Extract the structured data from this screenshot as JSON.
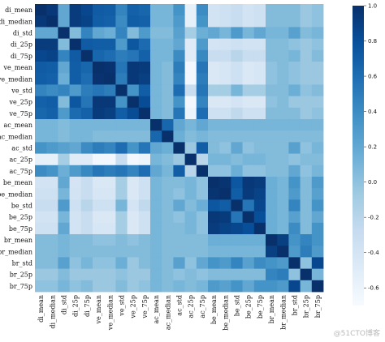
{
  "watermark": "@51CTO博客",
  "chart_data": {
    "type": "heatmap",
    "title": "",
    "xlabel": "",
    "ylabel": "",
    "labels": [
      "di_mean",
      "di_median",
      "di_std",
      "di_25p",
      "di_75p",
      "ve_mean",
      "ve_median",
      "ve_std",
      "ve_25p",
      "ve_75p",
      "ac_mean",
      "ac_median",
      "ac_std",
      "ac_25p",
      "ac_75p",
      "be_mean",
      "be_median",
      "be_std",
      "be_25p",
      "be_75p",
      "br_mean",
      "br_median",
      "br_std",
      "br_25p",
      "br_75p"
    ],
    "matrix": [
      [
        1.0,
        0.95,
        0.2,
        0.92,
        0.85,
        0.72,
        0.7,
        0.45,
        0.68,
        0.65,
        0.1,
        0.1,
        0.35,
        -0.55,
        0.4,
        -0.38,
        -0.35,
        -0.3,
        -0.38,
        -0.35,
        0.05,
        0.05,
        0.05,
        -0.05,
        0.0
      ],
      [
        0.95,
        1.0,
        0.2,
        0.92,
        0.88,
        0.7,
        0.68,
        0.4,
        0.7,
        0.68,
        0.1,
        0.1,
        0.3,
        -0.55,
        0.35,
        -0.38,
        -0.35,
        -0.3,
        -0.38,
        -0.35,
        0.05,
        0.05,
        0.05,
        -0.05,
        0.0
      ],
      [
        0.2,
        0.2,
        1.0,
        0.05,
        0.45,
        0.2,
        0.15,
        0.45,
        0.05,
        0.3,
        0.05,
        0.05,
        0.25,
        -0.1,
        0.15,
        0.2,
        0.1,
        0.3,
        0.1,
        0.2,
        0.1,
        0.1,
        0.25,
        0.05,
        0.1
      ],
      [
        0.92,
        0.92,
        0.05,
        1.0,
        0.72,
        0.7,
        0.7,
        0.3,
        0.75,
        0.62,
        0.1,
        0.1,
        0.2,
        -0.5,
        0.3,
        -0.4,
        -0.38,
        -0.35,
        -0.38,
        -0.38,
        0.05,
        0.05,
        0.0,
        -0.05,
        0.0
      ],
      [
        0.85,
        0.88,
        0.45,
        0.72,
        1.0,
        0.65,
        0.6,
        0.5,
        0.55,
        0.68,
        0.1,
        0.1,
        0.4,
        -0.5,
        0.42,
        -0.3,
        -0.3,
        -0.2,
        -0.3,
        -0.3,
        0.05,
        0.05,
        0.1,
        -0.05,
        0.05
      ],
      [
        0.72,
        0.7,
        0.2,
        0.7,
        0.65,
        1.0,
        0.98,
        0.55,
        0.95,
        0.93,
        0.1,
        0.05,
        0.5,
        -0.65,
        0.55,
        -0.45,
        -0.42,
        -0.35,
        -0.45,
        -0.42,
        0.0,
        0.05,
        0.0,
        -0.05,
        -0.05
      ],
      [
        0.7,
        0.68,
        0.15,
        0.7,
        0.6,
        0.98,
        1.0,
        0.5,
        0.95,
        0.9,
        0.1,
        0.05,
        0.45,
        -0.65,
        0.5,
        -0.45,
        -0.42,
        -0.35,
        -0.45,
        -0.42,
        0.0,
        0.05,
        0.0,
        -0.05,
        -0.05
      ],
      [
        0.45,
        0.4,
        0.45,
        0.3,
        0.5,
        0.55,
        0.5,
        1.0,
        0.35,
        0.7,
        0.1,
        0.05,
        0.6,
        -0.3,
        0.55,
        -0.1,
        -0.1,
        0.1,
        -0.1,
        -0.1,
        0.05,
        0.05,
        0.15,
        0.0,
        0.05
      ],
      [
        0.68,
        0.7,
        0.05,
        0.75,
        0.55,
        0.95,
        0.95,
        0.35,
        1.0,
        0.82,
        0.1,
        0.05,
        0.35,
        -0.65,
        0.45,
        -0.45,
        -0.45,
        -0.4,
        -0.45,
        -0.45,
        0.0,
        0.05,
        -0.05,
        -0.05,
        -0.05
      ],
      [
        0.65,
        0.68,
        0.3,
        0.62,
        0.68,
        0.93,
        0.9,
        0.7,
        0.82,
        1.0,
        0.1,
        0.05,
        0.55,
        -0.6,
        0.6,
        -0.35,
        -0.35,
        -0.25,
        -0.35,
        -0.35,
        0.05,
        0.05,
        0.05,
        -0.05,
        0.0
      ],
      [
        0.1,
        0.1,
        0.05,
        0.1,
        0.1,
        0.1,
        0.1,
        0.1,
        0.1,
        0.1,
        1.0,
        0.65,
        0.2,
        0.1,
        0.2,
        0.1,
        0.1,
        0.1,
        0.1,
        0.1,
        0.1,
        0.1,
        0.1,
        0.1,
        0.1
      ],
      [
        0.1,
        0.1,
        0.05,
        0.1,
        0.1,
        0.05,
        0.05,
        0.05,
        0.05,
        0.05,
        0.65,
        1.0,
        0.15,
        0.05,
        0.1,
        0.05,
        0.05,
        0.05,
        0.05,
        0.05,
        0.05,
        0.05,
        0.05,
        0.05,
        0.05
      ],
      [
        0.35,
        0.3,
        0.25,
        0.2,
        0.4,
        0.5,
        0.45,
        0.6,
        0.35,
        0.55,
        0.2,
        0.15,
        1.0,
        -0.05,
        0.7,
        0.05,
        0.0,
        0.2,
        0.0,
        0.05,
        0.05,
        0.05,
        0.25,
        0.0,
        0.1
      ],
      [
        -0.55,
        -0.55,
        -0.1,
        -0.5,
        -0.5,
        -0.65,
        -0.65,
        -0.3,
        -0.65,
        -0.6,
        0.1,
        0.05,
        -0.05,
        1.0,
        -0.2,
        0.1,
        0.1,
        0.05,
        0.1,
        0.1,
        0.05,
        0.05,
        0.0,
        0.05,
        0.05
      ],
      [
        0.4,
        0.35,
        0.15,
        0.3,
        0.42,
        0.55,
        0.5,
        0.55,
        0.45,
        0.6,
        0.2,
        0.1,
        0.7,
        -0.2,
        1.0,
        0.0,
        0.0,
        0.15,
        0.0,
        0.0,
        0.05,
        0.05,
        0.2,
        0.0,
        0.1
      ],
      [
        -0.38,
        -0.38,
        0.2,
        -0.4,
        -0.3,
        -0.45,
        -0.45,
        -0.1,
        -0.45,
        -0.35,
        0.1,
        0.05,
        0.05,
        0.1,
        0.0,
        1.0,
        0.97,
        0.75,
        0.95,
        0.92,
        0.15,
        0.1,
        0.35,
        0.05,
        0.3
      ],
      [
        -0.35,
        -0.35,
        0.1,
        -0.38,
        -0.3,
        -0.42,
        -0.42,
        -0.1,
        -0.45,
        -0.35,
        0.1,
        0.05,
        0.0,
        0.1,
        0.0,
        0.97,
        1.0,
        0.7,
        0.93,
        0.88,
        0.15,
        0.1,
        0.3,
        0.05,
        0.25
      ],
      [
        -0.3,
        -0.3,
        0.3,
        -0.35,
        -0.2,
        -0.35,
        -0.35,
        0.1,
        -0.4,
        -0.25,
        0.1,
        0.05,
        0.2,
        0.05,
        0.15,
        0.75,
        0.7,
        1.0,
        0.55,
        0.85,
        0.15,
        0.1,
        0.45,
        0.05,
        0.35
      ],
      [
        -0.38,
        -0.38,
        0.1,
        -0.38,
        -0.3,
        -0.45,
        -0.45,
        -0.1,
        -0.45,
        -0.35,
        0.1,
        0.05,
        0.0,
        0.1,
        0.0,
        0.95,
        0.93,
        0.55,
        1.0,
        0.8,
        0.15,
        0.1,
        0.25,
        0.05,
        0.2
      ],
      [
        -0.35,
        -0.35,
        0.2,
        -0.38,
        -0.3,
        -0.42,
        -0.42,
        -0.1,
        -0.45,
        -0.35,
        0.1,
        0.05,
        0.05,
        0.1,
        0.0,
        0.92,
        0.88,
        0.85,
        0.8,
        1.0,
        0.15,
        0.1,
        0.4,
        0.05,
        0.35
      ],
      [
        0.05,
        0.05,
        0.1,
        0.05,
        0.05,
        0.0,
        0.0,
        0.05,
        0.0,
        0.05,
        0.1,
        0.05,
        0.05,
        0.05,
        0.05,
        0.15,
        0.15,
        0.15,
        0.15,
        0.15,
        1.0,
        0.9,
        0.35,
        0.45,
        0.35
      ],
      [
        0.05,
        0.05,
        0.1,
        0.05,
        0.05,
        0.05,
        0.05,
        0.05,
        0.05,
        0.05,
        0.1,
        0.05,
        0.05,
        0.05,
        0.05,
        0.1,
        0.1,
        0.1,
        0.1,
        0.1,
        0.9,
        1.0,
        0.3,
        0.5,
        0.3
      ],
      [
        0.05,
        0.05,
        0.25,
        0.0,
        0.1,
        0.0,
        0.0,
        0.15,
        -0.05,
        0.05,
        0.1,
        0.05,
        0.25,
        0.0,
        0.2,
        0.35,
        0.3,
        0.45,
        0.25,
        0.4,
        0.35,
        0.3,
        1.0,
        0.0,
        0.85
      ],
      [
        -0.05,
        -0.05,
        0.05,
        -0.05,
        -0.05,
        -0.05,
        -0.05,
        0.0,
        -0.05,
        -0.05,
        0.1,
        0.05,
        0.0,
        0.05,
        0.0,
        0.05,
        0.05,
        0.05,
        0.05,
        0.05,
        0.45,
        0.5,
        0.0,
        1.0,
        0.1
      ],
      [
        0.0,
        0.0,
        0.1,
        0.0,
        0.05,
        -0.05,
        -0.05,
        0.05,
        -0.05,
        0.0,
        0.1,
        0.05,
        0.1,
        0.05,
        0.1,
        0.3,
        0.25,
        0.35,
        0.2,
        0.35,
        0.35,
        0.3,
        0.85,
        0.1,
        1.0
      ]
    ],
    "colorbar": {
      "min": -0.7,
      "max": 1.0,
      "ticks": [
        1.0,
        0.8,
        0.6,
        0.4,
        0.2,
        0.0,
        -0.2,
        -0.4,
        -0.6
      ],
      "tick_labels": [
        "1.0",
        "0.8",
        "0.6",
        "0.4",
        "0.2",
        "0.0",
        "-0.2",
        "-0.4",
        "-0.6"
      ],
      "colormap": [
        "#f7fbff",
        "#deebf7",
        "#c6dbef",
        "#9ecae1",
        "#6baed6",
        "#4292c6",
        "#2171b5",
        "#08519c",
        "#08306b"
      ]
    },
    "grid": false,
    "legend": "colorbar-right"
  }
}
